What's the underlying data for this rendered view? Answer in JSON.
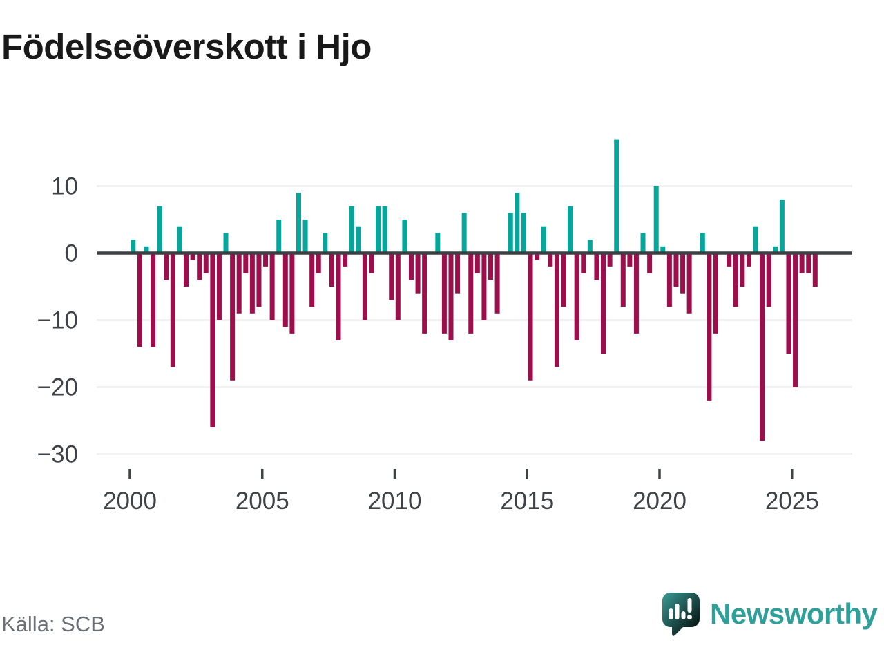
{
  "title": "Födelseöverskott i Hjo",
  "source": {
    "label": "Källa: SCB"
  },
  "branding": {
    "name": "Newsworthy",
    "logo_icon": "speech-bubble-bar-chart-icon"
  },
  "colors": {
    "background": "#ffffff",
    "title": "#191919",
    "positive": "#05a79d",
    "negative": "#9e0e4c",
    "zero_axis": "#3b3f42",
    "grid": "#e4e4e4",
    "tick_label": "#3e4347",
    "source_text": "#6b6f76",
    "brand_teal": "#2f9f99",
    "logo_bubble": "#41a6a0"
  },
  "chart_data": {
    "type": "bar",
    "title": "Födelseöverskott i Hjo",
    "period": "quarterly, 2000 Q1 to 2025 Q4",
    "start_year": 2000,
    "quarters_per_year": 4,
    "values": [
      2,
      -14,
      1,
      -14,
      7,
      -4,
      -17,
      4,
      -5,
      -1,
      -4,
      -3,
      -26,
      -10,
      3,
      -19,
      -9,
      -3,
      -9,
      -8,
      -2,
      -10,
      5,
      -11,
      -12,
      9,
      5,
      -8,
      -3,
      3,
      -5,
      -13,
      -2,
      7,
      4,
      -10,
      -3,
      7,
      7,
      -7,
      -10,
      5,
      -4,
      -6,
      -12,
      0,
      3,
      -12,
      -13,
      -6,
      6,
      -12,
      -3,
      -10,
      -4,
      -9,
      0,
      6,
      9,
      6,
      -19,
      -1,
      4,
      -2,
      -17,
      -8,
      7,
      -13,
      -3,
      2,
      -4,
      -15,
      -2,
      17,
      -8,
      -2,
      -12,
      3,
      -3,
      10,
      1,
      -8,
      -5,
      -6,
      -9,
      0,
      3,
      -22,
      -12,
      0,
      -2,
      -8,
      -5,
      -2,
      4,
      -28,
      -8,
      1,
      8,
      -15,
      -20,
      -3,
      -3,
      -5
    ],
    "yticks": [
      10,
      0,
      -10,
      -20,
      -30
    ],
    "yticklabels": [
      "10",
      "0",
      "−10",
      "−20",
      "−30"
    ],
    "xticks": [
      2000,
      2005,
      2010,
      2015,
      2020,
      2025
    ],
    "xticklabels": [
      "2000",
      "2005",
      "2010",
      "2015",
      "2020",
      "2025"
    ],
    "ylim": [
      -32,
      19
    ],
    "grid": true,
    "legend": false,
    "max_value": 17,
    "min_value": -28
  }
}
